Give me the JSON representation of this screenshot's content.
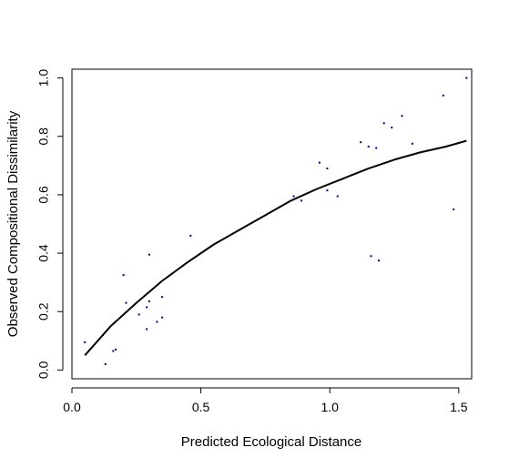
{
  "chart_data": {
    "type": "scatter",
    "title": "",
    "xlabel": "Predicted Ecological Distance",
    "ylabel": "Observed Compositional Dissimilarity",
    "xlim": [
      0.0,
      1.55
    ],
    "ylim": [
      -0.03,
      1.03
    ],
    "x_ticks": [
      0.0,
      0.5,
      1.0,
      1.5
    ],
    "x_tick_labels": [
      "0.0",
      "0.5",
      "1.0",
      "1.5"
    ],
    "y_ticks": [
      0.0,
      0.2,
      0.4,
      0.6,
      0.8,
      1.0
    ],
    "y_tick_labels": [
      "0.0",
      "0.2",
      "0.4",
      "0.6",
      "0.8",
      "1.0"
    ],
    "grid": false,
    "legend": "none",
    "point_color": "#00008b",
    "series": [
      {
        "kind": "points",
        "x": [
          0.05,
          0.12,
          0.13,
          0.16,
          0.17,
          0.2,
          0.21,
          0.26,
          0.29,
          0.29,
          0.3,
          0.3,
          0.33,
          0.35,
          0.35,
          0.46,
          0.86,
          0.89,
          0.96,
          0.99,
          0.99,
          1.03,
          1.12,
          1.15,
          1.16,
          1.18,
          1.19,
          1.21,
          1.24,
          1.28,
          1.32,
          1.44,
          1.48,
          1.53
        ],
        "y": [
          0.095,
          0.12,
          0.02,
          0.065,
          0.07,
          0.325,
          0.23,
          0.19,
          0.14,
          0.215,
          0.235,
          0.395,
          0.165,
          0.18,
          0.25,
          0.46,
          0.595,
          0.58,
          0.71,
          0.615,
          0.69,
          0.595,
          0.78,
          0.765,
          0.39,
          0.76,
          0.375,
          0.845,
          0.83,
          0.87,
          0.775,
          0.94,
          0.55,
          1.0
        ]
      },
      {
        "kind": "fitted-curve",
        "x": [
          0.05,
          0.15,
          0.25,
          0.35,
          0.45,
          0.55,
          0.65,
          0.75,
          0.85,
          0.95,
          1.05,
          1.15,
          1.25,
          1.35,
          1.45,
          1.53
        ],
        "y": [
          0.05,
          0.15,
          0.23,
          0.305,
          0.37,
          0.43,
          0.48,
          0.53,
          0.58,
          0.62,
          0.655,
          0.69,
          0.72,
          0.745,
          0.765,
          0.785
        ]
      }
    ]
  }
}
